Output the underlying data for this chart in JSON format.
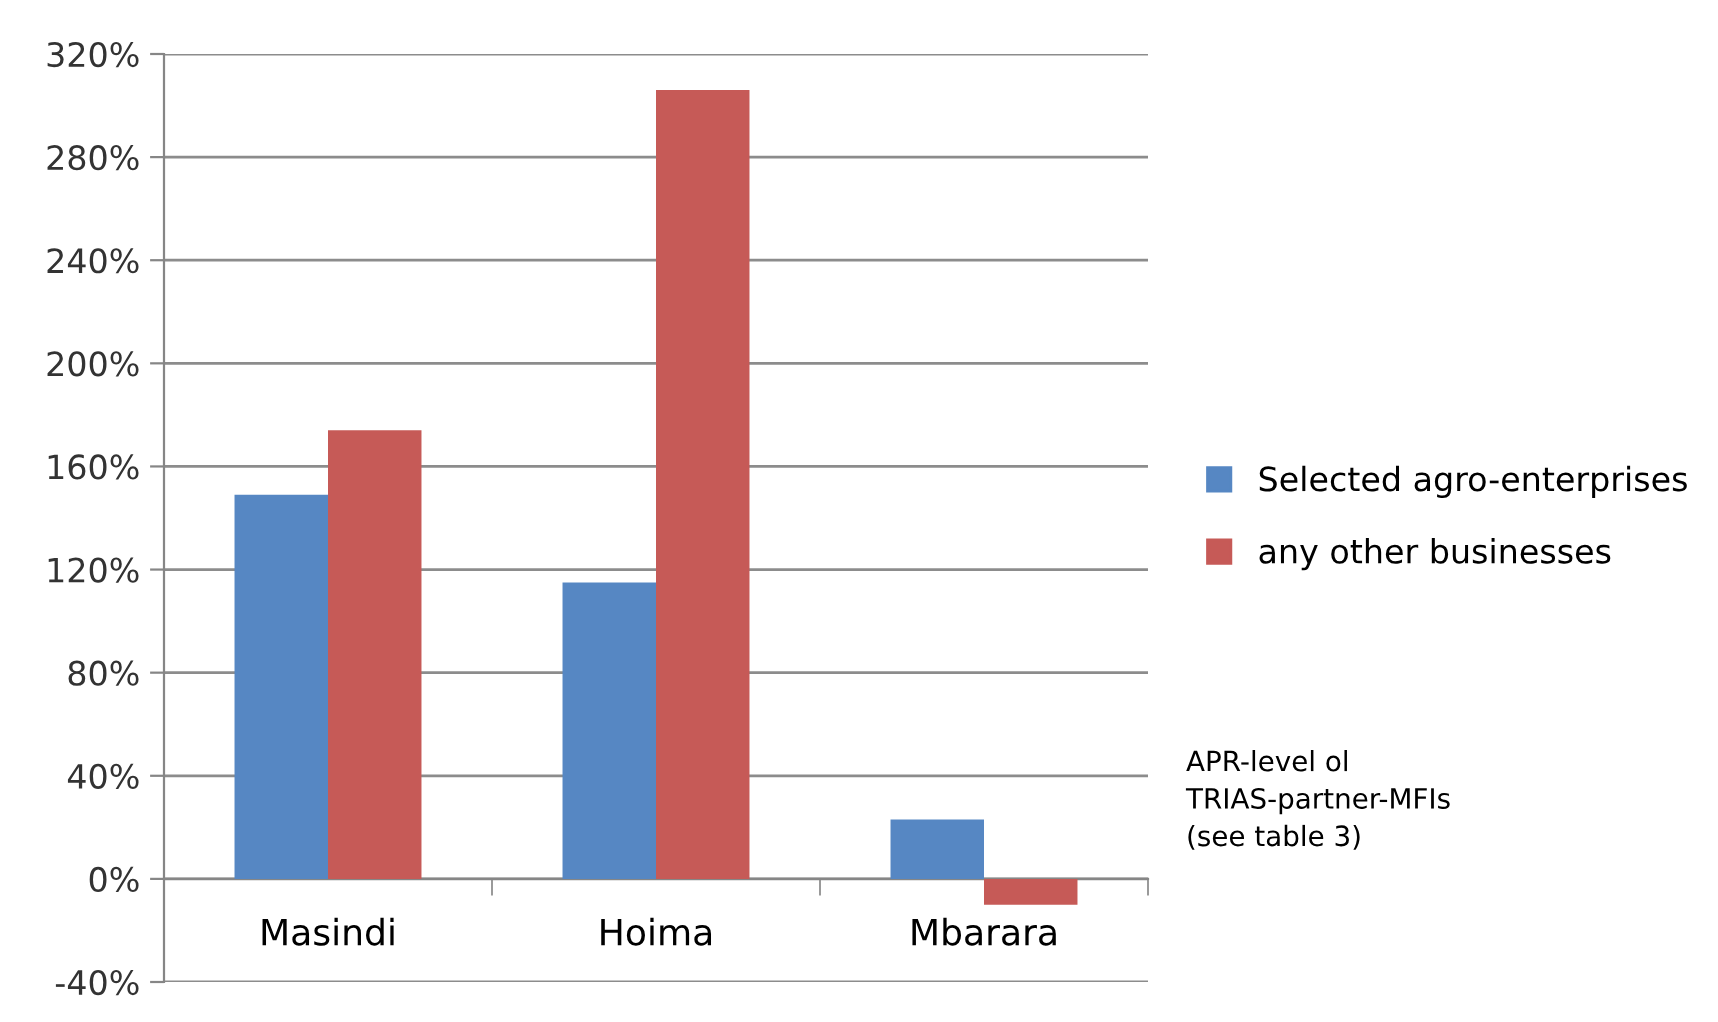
{
  "chart_data": {
    "type": "bar",
    "categories": [
      "Masindi",
      "Hoima",
      "Mbarara"
    ],
    "series": [
      {
        "name": "Selected agro-enterprises",
        "color": "#5687c3",
        "values": [
          149,
          115,
          23
        ]
      },
      {
        "name": "any other businesses",
        "color": "#c65a57",
        "values": [
          174,
          306,
          -10
        ]
      }
    ],
    "ylim": [
      -40,
      320
    ],
    "yticks": [
      {
        "value": -40,
        "label": "-40%"
      },
      {
        "value": 0,
        "label": "0%"
      },
      {
        "value": 40,
        "label": "40%"
      },
      {
        "value": 80,
        "label": "80%"
      },
      {
        "value": 120,
        "label": "120%"
      },
      {
        "value": 160,
        "label": "160%"
      },
      {
        "value": 200,
        "label": "200%"
      },
      {
        "value": 240,
        "label": "240%"
      },
      {
        "value": 280,
        "label": "280%"
      },
      {
        "value": 320,
        "label": "320%"
      }
    ],
    "grid": "y",
    "legend": "right",
    "annotations": [
      "APR-level ol\nTRIAS-partner-MFIs\n(see table 3)"
    ]
  }
}
